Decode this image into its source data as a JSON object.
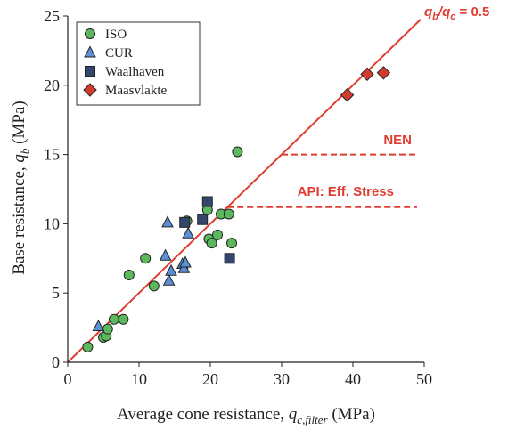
{
  "chart_data": {
    "type": "scatter",
    "xlabel": "Average cone resistance, q_c,filter (MPa)",
    "xlabel_parts": [
      "Average cone resistance, ",
      "q",
      "c,filter",
      " (MPa)"
    ],
    "ylabel": "Base resistance, q_b (MPa)",
    "ylabel_parts": [
      "Base resistance, ",
      "q",
      "b",
      " (MPa)"
    ],
    "xlim": [
      0,
      50
    ],
    "ylim": [
      0,
      25
    ],
    "xticks": [
      0,
      10,
      20,
      30,
      40,
      50
    ],
    "yticks": [
      0,
      5,
      10,
      15,
      20,
      25
    ],
    "grid": false,
    "legend_position": "top-left",
    "series": [
      {
        "name": "ISO",
        "marker": "circle",
        "color": "#5cb85c",
        "points": [
          [
            2.8,
            1.1
          ],
          [
            5.0,
            1.8
          ],
          [
            5.4,
            1.9
          ],
          [
            5.6,
            2.4
          ],
          [
            6.5,
            3.1
          ],
          [
            7.8,
            3.1
          ],
          [
            8.6,
            6.3
          ],
          [
            10.9,
            7.5
          ],
          [
            12.1,
            5.5
          ],
          [
            16.7,
            10.2
          ],
          [
            19.6,
            11.0
          ],
          [
            19.8,
            8.9
          ],
          [
            20.2,
            8.6
          ],
          [
            21.0,
            9.2
          ],
          [
            21.5,
            10.7
          ],
          [
            22.6,
            10.7
          ],
          [
            23.0,
            8.6
          ],
          [
            23.8,
            15.2
          ]
        ]
      },
      {
        "name": "CUR",
        "marker": "triangle",
        "color": "#5b8fd6",
        "points": [
          [
            4.3,
            2.6
          ],
          [
            13.7,
            7.7
          ],
          [
            14.0,
            10.1
          ],
          [
            14.2,
            5.9
          ],
          [
            14.5,
            6.6
          ],
          [
            16.1,
            7.1
          ],
          [
            16.3,
            6.8
          ],
          [
            16.5,
            7.2
          ],
          [
            16.9,
            9.3
          ]
        ]
      },
      {
        "name": "Waalhaven",
        "marker": "square",
        "color": "#34466e",
        "points": [
          [
            16.4,
            10.1
          ],
          [
            18.9,
            10.3
          ],
          [
            19.6,
            11.6
          ],
          [
            22.7,
            7.5
          ]
        ]
      },
      {
        "name": "Maasvlakte",
        "marker": "diamond",
        "color": "#d23b2c",
        "points": [
          [
            39.2,
            19.3
          ],
          [
            42.0,
            20.8
          ],
          [
            44.3,
            20.9
          ]
        ]
      }
    ],
    "lines": [
      {
        "label": "q_b/q_c = 0.5",
        "type": "ratio",
        "slope": 0.5,
        "x": [
          0,
          49.5
        ],
        "color": "#e03c31",
        "style": "solid"
      },
      {
        "label": "NEN",
        "type": "horizontal",
        "y": 15,
        "x": [
          30,
          49
        ],
        "color": "#e03c31",
        "style": "dashed"
      },
      {
        "label": "API: Eff. Stress",
        "type": "horizontal",
        "y": 11.2,
        "x": [
          22.4,
          49
        ],
        "color": "#e03c31",
        "style": "dashed"
      }
    ],
    "annotations": {
      "ratio_label_parts": [
        "q",
        "b",
        "/q",
        "c",
        " = 0.5"
      ],
      "nen": "NEN",
      "api": "API: Eff. Stress"
    }
  }
}
